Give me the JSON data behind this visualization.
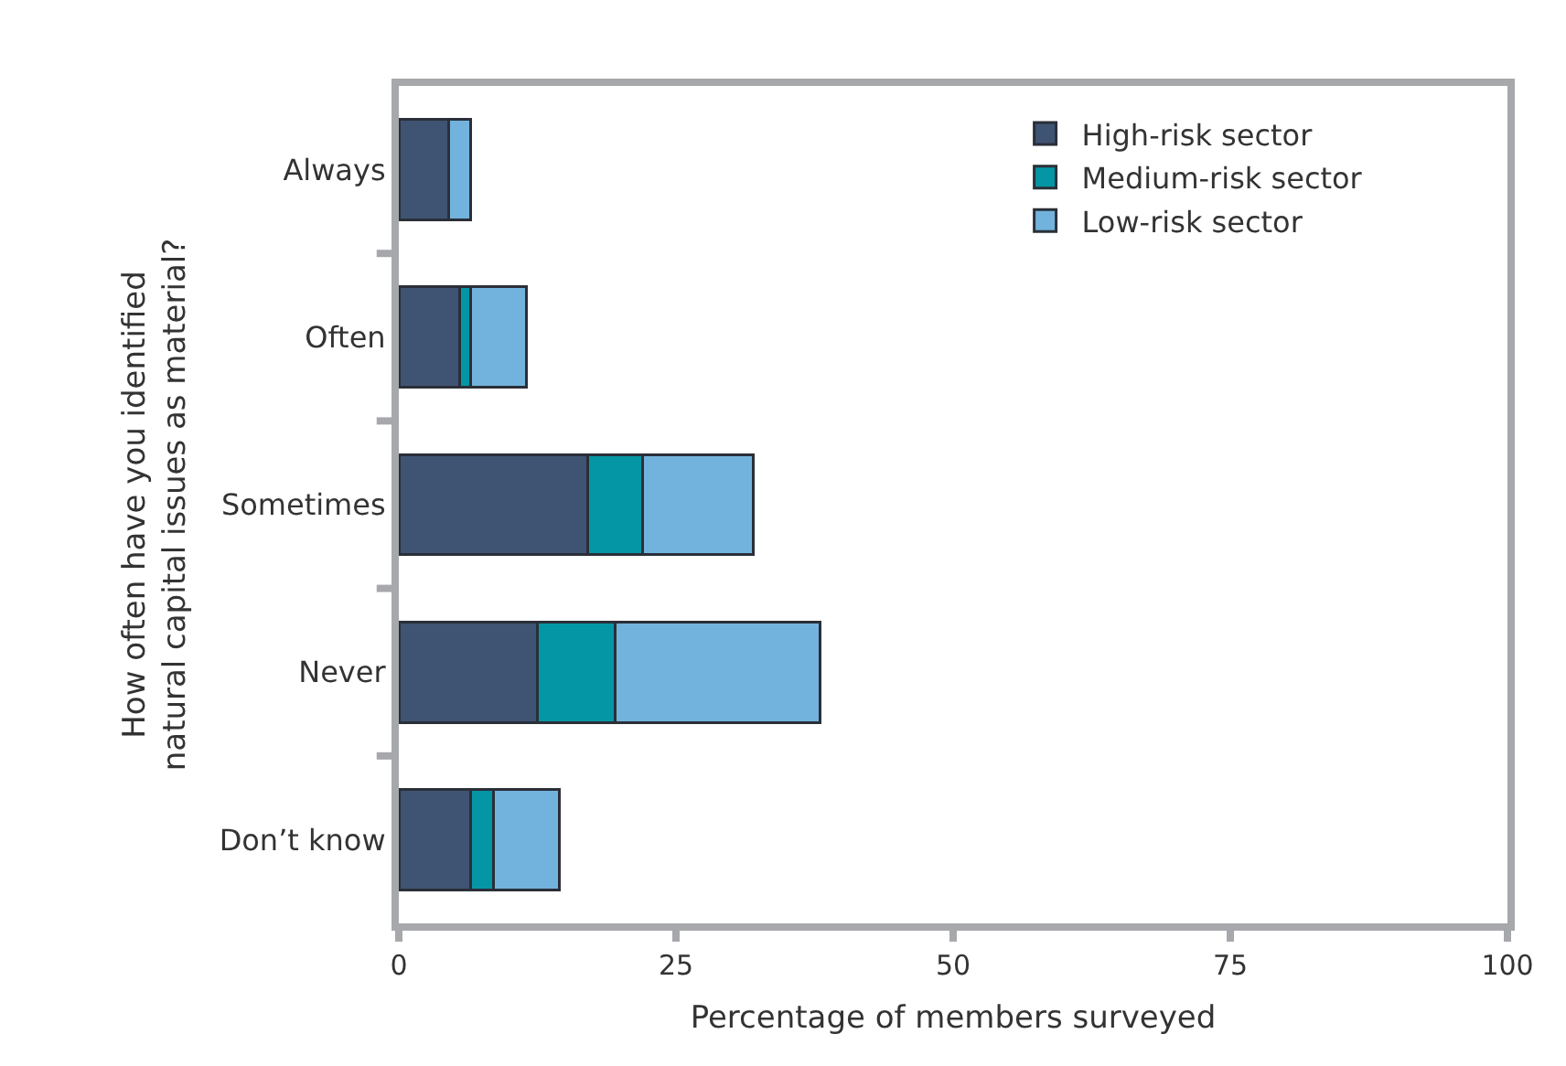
{
  "chart_data": {
    "type": "bar",
    "orientation": "horizontal",
    "stacked": true,
    "categories": [
      "Always",
      "Often",
      "Sometimes",
      "Never",
      "Don’t know"
    ],
    "series": [
      {
        "name": "High-risk sector",
        "color": "#3f5472",
        "values": [
          4.5,
          5.5,
          17,
          12.5,
          6.5
        ]
      },
      {
        "name": "Medium-risk sector",
        "color": "#0596a5",
        "values": [
          0,
          1,
          5,
          7,
          2
        ]
      },
      {
        "name": "Low-risk sector",
        "color": "#72b3dd",
        "values": [
          2,
          5,
          10,
          18.5,
          6
        ]
      }
    ],
    "xlabel": "Percentage of members surveyed",
    "ylabel": "How often have you identified\nnatural capital issues as material?",
    "xlim": [
      0,
      100
    ],
    "xticks": [
      0,
      25,
      50,
      75,
      100
    ],
    "legend": "top right"
  }
}
